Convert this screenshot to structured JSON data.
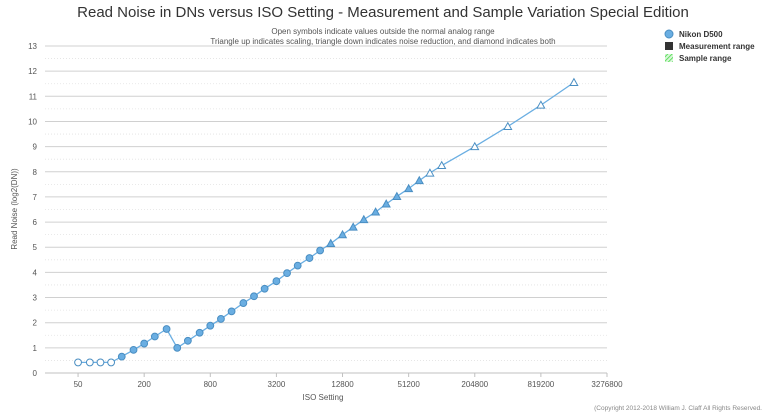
{
  "chart_data": {
    "type": "line",
    "title": "Read Noise in DNs versus ISO Setting - Measurement and Sample Variation Special Edition",
    "subtitle_lines": [
      "Open symbols indicate values outside the normal analog range",
      "Triangle up indicates scaling, triangle down indicates noise reduction, and diamond indicates both"
    ],
    "xlabel": "ISO Setting",
    "ylabel": "Read Noise (log2(DN))",
    "x_scale": "log2",
    "x_ticks": [
      50,
      200,
      800,
      3200,
      12800,
      51200,
      204800,
      819200,
      3276800
    ],
    "y_ticks": [
      0,
      1,
      2,
      3,
      4,
      5,
      6,
      7,
      8,
      9,
      10,
      11,
      12,
      13
    ],
    "ylim": [
      0,
      13
    ],
    "grid": true,
    "legend_position": "top-right",
    "legend": [
      {
        "label": "Nikon D500",
        "marker": "circle",
        "color": "#6aaee2"
      },
      {
        "label": "Measurement range",
        "marker": "square",
        "color": "#333333"
      },
      {
        "label": "Sample range",
        "marker": "hatched-square",
        "color": "#44dd44"
      }
    ],
    "series": [
      {
        "name": "Nikon D500",
        "color": "#6aaee2",
        "points": [
          {
            "x": 50,
            "y": 0.42,
            "marker": "circle-open"
          },
          {
            "x": 64,
            "y": 0.42,
            "marker": "circle-open"
          },
          {
            "x": 80,
            "y": 0.42,
            "marker": "circle-open"
          },
          {
            "x": 100,
            "y": 0.42,
            "marker": "circle-open"
          },
          {
            "x": 125,
            "y": 0.65,
            "marker": "circle"
          },
          {
            "x": 160,
            "y": 0.92,
            "marker": "circle"
          },
          {
            "x": 200,
            "y": 1.17,
            "marker": "circle"
          },
          {
            "x": 250,
            "y": 1.45,
            "marker": "circle"
          },
          {
            "x": 320,
            "y": 1.75,
            "marker": "circle"
          },
          {
            "x": 400,
            "y": 1.0,
            "marker": "circle"
          },
          {
            "x": 500,
            "y": 1.28,
            "marker": "circle"
          },
          {
            "x": 640,
            "y": 1.6,
            "marker": "circle"
          },
          {
            "x": 800,
            "y": 1.88,
            "marker": "circle"
          },
          {
            "x": 1000,
            "y": 2.15,
            "marker": "circle"
          },
          {
            "x": 1250,
            "y": 2.45,
            "marker": "circle"
          },
          {
            "x": 1600,
            "y": 2.78,
            "marker": "circle"
          },
          {
            "x": 2000,
            "y": 3.05,
            "marker": "circle"
          },
          {
            "x": 2500,
            "y": 3.35,
            "marker": "circle"
          },
          {
            "x": 3200,
            "y": 3.65,
            "marker": "circle"
          },
          {
            "x": 4000,
            "y": 3.97,
            "marker": "circle"
          },
          {
            "x": 5000,
            "y": 4.27,
            "marker": "circle"
          },
          {
            "x": 6400,
            "y": 4.57,
            "marker": "circle"
          },
          {
            "x": 8000,
            "y": 4.87,
            "marker": "circle"
          },
          {
            "x": 10000,
            "y": 5.15,
            "marker": "triangle-up"
          },
          {
            "x": 12800,
            "y": 5.5,
            "marker": "triangle-up"
          },
          {
            "x": 16000,
            "y": 5.8,
            "marker": "triangle-up"
          },
          {
            "x": 20000,
            "y": 6.1,
            "marker": "triangle-up"
          },
          {
            "x": 25600,
            "y": 6.4,
            "marker": "triangle-up"
          },
          {
            "x": 32000,
            "y": 6.72,
            "marker": "triangle-up"
          },
          {
            "x": 40000,
            "y": 7.02,
            "marker": "triangle-up"
          },
          {
            "x": 51200,
            "y": 7.33,
            "marker": "triangle-up"
          },
          {
            "x": 64000,
            "y": 7.65,
            "marker": "triangle-up"
          },
          {
            "x": 80000,
            "y": 7.95,
            "marker": "triangle-up-open"
          },
          {
            "x": 102400,
            "y": 8.25,
            "marker": "triangle-up-open"
          },
          {
            "x": 204800,
            "y": 9.0,
            "marker": "triangle-up-open"
          },
          {
            "x": 409600,
            "y": 9.8,
            "marker": "triangle-up-open"
          },
          {
            "x": 819200,
            "y": 10.65,
            "marker": "triangle-up-open"
          },
          {
            "x": 1638400,
            "y": 11.55,
            "marker": "triangle-up-open"
          }
        ]
      }
    ]
  },
  "copyright": "(Copyright 2012-2018 William J. Claff All Rights Reserved."
}
